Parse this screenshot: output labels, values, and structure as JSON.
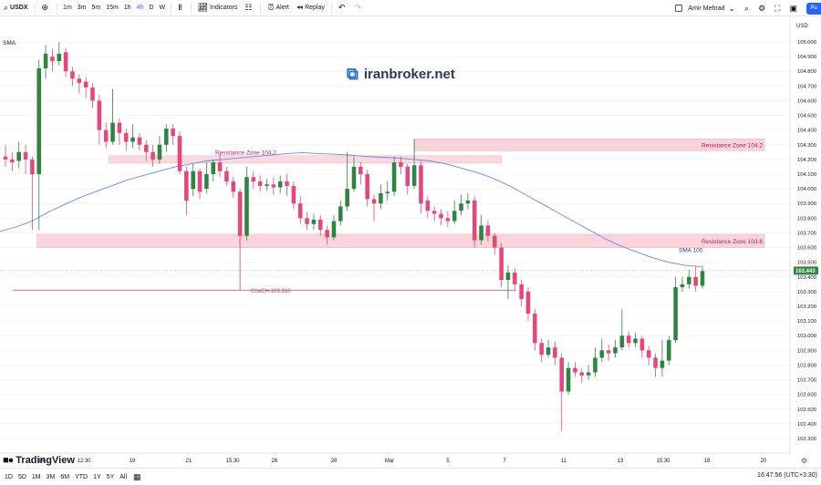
{
  "toolbar": {
    "symbol": "USDX",
    "timeframes": [
      "1m",
      "3m",
      "5m",
      "15m",
      "1h",
      "4h",
      "D",
      "W"
    ],
    "active_timeframe": "4h",
    "indicators_label": "Indicators",
    "alert_label": "Alert",
    "replay_label": "Replay",
    "user_name": "Amir Mehrad",
    "publish_label": "Pu"
  },
  "legend": {
    "indicator_label": "SMA"
  },
  "watermark": {
    "text": "iranbroker.net"
  },
  "branding": {
    "text": "TradingView"
  },
  "bottom": {
    "ranges": [
      "1D",
      "5D",
      "1M",
      "3M",
      "6M",
      "YTD",
      "1Y",
      "5Y",
      "All"
    ],
    "clock": "16:47:56 (UTC+3:30)"
  },
  "colors": {
    "up": "#2e8540",
    "down": "#e8457a",
    "zone": "#f8cdd4",
    "zone_border": "#f3a7b4",
    "zone_label": "#c2185b",
    "sma": "#5b8def",
    "choch": "#b5485f",
    "price_tag": "#2e8540"
  },
  "chart_data": {
    "type": "candlestick",
    "currency": "USD",
    "y_ticks": [
      "105.000",
      "104.900",
      "104.800",
      "104.700",
      "104.600",
      "104.500",
      "104.400",
      "104.300",
      "104.200",
      "104.100",
      "104.000",
      "103.900",
      "103.800",
      "103.700",
      "103.600",
      "103.500",
      "103.400",
      "103.300",
      "103.200",
      "103.100",
      "103.000",
      "102.900",
      "102.800",
      "102.700",
      "102.600",
      "102.500",
      "102.400",
      "102.300"
    ],
    "ylim": [
      102.28,
      105.05
    ],
    "x_ticks": [
      "14",
      "12:30",
      "19",
      "21",
      "15:30",
      "26",
      "28",
      "Mar",
      "5",
      "7",
      "11",
      "13",
      "15:30",
      "18",
      "20"
    ],
    "last_price": "103.443",
    "sma_label": "SMA 100",
    "sma_values": [
      103.71,
      103.74,
      103.78,
      103.84,
      103.89,
      103.94,
      103.98,
      104.02,
      104.06,
      104.09,
      104.12,
      104.15,
      104.17,
      104.19,
      104.2,
      104.21,
      104.22,
      104.23,
      104.24,
      104.245,
      104.24,
      104.235,
      104.23,
      104.22,
      104.215,
      104.21,
      104.2,
      104.19,
      104.17,
      104.14,
      104.11,
      104.07,
      104.02,
      103.96,
      103.9,
      103.84,
      103.78,
      103.72,
      103.66,
      103.61,
      103.57,
      103.53,
      103.5,
      103.48,
      103.47
    ],
    "zones": [
      {
        "label": "Resistance Zone 104.2",
        "top": 104.225,
        "bottom": 104.175
      },
      {
        "label": "Resistance Zone 104.2",
        "top": 104.34,
        "bottom": 104.26
      },
      {
        "label": "Resistance Zone 103.6",
        "top": 103.69,
        "bottom": 103.6
      }
    ],
    "choch": {
      "label": "ChoCH-103.310",
      "value": 103.31
    },
    "candles": [
      [
        104.22,
        104.2,
        104.3,
        104.15
      ],
      [
        104.2,
        104.18,
        104.25,
        104.12
      ],
      [
        104.19,
        104.25,
        104.32,
        104.14
      ],
      [
        104.25,
        104.2,
        104.3,
        104.1
      ],
      [
        104.2,
        104.1,
        104.22,
        103.72
      ],
      [
        104.1,
        104.82,
        104.88,
        103.72
      ],
      [
        104.82,
        104.92,
        104.98,
        104.75
      ],
      [
        104.9,
        104.87,
        104.95,
        104.8
      ],
      [
        104.87,
        104.92,
        105.0,
        104.84
      ],
      [
        104.93,
        104.8,
        104.96,
        104.76
      ],
      [
        104.8,
        104.75,
        104.83,
        104.7
      ],
      [
        104.75,
        104.72,
        104.78,
        104.65
      ],
      [
        104.73,
        104.69,
        104.76,
        104.62
      ],
      [
        104.69,
        104.6,
        104.72,
        104.55
      ],
      [
        104.6,
        104.4,
        104.64,
        104.3
      ],
      [
        104.4,
        104.32,
        104.45,
        104.28
      ],
      [
        104.32,
        104.45,
        104.68,
        104.3
      ],
      [
        104.45,
        104.38,
        104.48,
        104.3
      ],
      [
        104.38,
        104.32,
        104.41,
        104.26
      ],
      [
        104.32,
        104.35,
        104.44,
        104.28
      ],
      [
        104.35,
        104.3,
        104.38,
        104.26
      ],
      [
        104.3,
        104.25,
        104.33,
        104.19
      ],
      [
        104.25,
        104.2,
        104.3,
        104.15
      ],
      [
        104.2,
        104.3,
        104.36,
        104.17
      ],
      [
        104.3,
        104.41,
        104.44,
        104.25
      ],
      [
        104.41,
        104.36,
        104.44,
        104.3
      ],
      [
        104.36,
        104.12,
        104.39,
        104.1
      ],
      [
        104.12,
        103.92,
        104.15,
        103.82
      ],
      [
        104.0,
        104.12,
        104.17,
        103.95
      ],
      [
        104.12,
        103.98,
        104.14,
        103.93
      ],
      [
        104.0,
        104.1,
        104.18,
        103.97
      ],
      [
        104.1,
        104.18,
        104.2,
        104.05
      ],
      [
        104.18,
        104.12,
        104.24,
        104.08
      ],
      [
        104.12,
        104.05,
        104.15,
        104.02
      ],
      [
        104.05,
        103.98,
        104.08,
        103.94
      ],
      [
        103.98,
        103.68,
        104.0,
        103.62
      ],
      [
        103.68,
        104.08,
        104.15,
        103.65
      ],
      [
        104.08,
        104.05,
        104.12,
        104.0
      ],
      [
        104.05,
        104.02,
        104.09,
        103.98
      ],
      [
        104.02,
        104.03,
        104.07,
        103.99
      ],
      [
        104.03,
        104.01,
        104.08,
        103.96
      ],
      [
        104.01,
        104.05,
        104.09,
        103.97
      ],
      [
        104.05,
        104.02,
        104.1,
        103.95
      ],
      [
        104.02,
        103.9,
        104.05,
        103.86
      ],
      [
        103.9,
        103.8,
        103.95,
        103.76
      ],
      [
        103.8,
        103.76,
        103.84,
        103.72
      ],
      [
        103.76,
        103.79,
        103.83,
        103.72
      ],
      [
        103.79,
        103.72,
        103.82,
        103.68
      ],
      [
        103.72,
        103.67,
        103.75,
        103.62
      ],
      [
        103.67,
        103.78,
        103.82,
        103.65
      ],
      [
        103.78,
        103.88,
        103.92,
        103.75
      ],
      [
        103.88,
        104.0,
        104.25,
        103.85
      ],
      [
        104.0,
        104.15,
        104.22,
        103.98
      ],
      [
        104.15,
        104.1,
        104.18,
        104.03
      ],
      [
        104.1,
        103.93,
        104.13,
        103.88
      ],
      [
        103.93,
        103.9,
        103.96,
        103.78
      ],
      [
        103.9,
        103.97,
        104.03,
        103.86
      ],
      [
        103.97,
        103.98,
        104.05,
        103.92
      ],
      [
        103.98,
        104.18,
        104.22,
        103.95
      ],
      [
        104.18,
        104.15,
        104.22,
        104.1
      ],
      [
        104.15,
        104.02,
        104.17,
        103.96
      ],
      [
        104.02,
        104.16,
        104.34,
        104.0
      ],
      [
        104.16,
        103.9,
        104.19,
        103.83
      ],
      [
        103.92,
        103.85,
        103.95,
        103.8
      ],
      [
        103.85,
        103.83,
        103.88,
        103.78
      ],
      [
        103.83,
        103.8,
        103.86,
        103.75
      ],
      [
        103.8,
        103.78,
        103.85,
        103.74
      ],
      [
        103.78,
        103.85,
        103.92,
        103.76
      ],
      [
        103.85,
        103.9,
        103.96,
        103.82
      ],
      [
        103.9,
        103.92,
        103.97,
        103.86
      ],
      [
        103.92,
        103.65,
        103.95,
        103.6
      ],
      [
        103.65,
        103.75,
        103.82,
        103.62
      ],
      [
        103.75,
        103.68,
        103.78,
        103.64
      ],
      [
        103.68,
        103.6,
        103.7,
        103.55
      ],
      [
        103.6,
        103.38,
        103.63,
        103.33
      ],
      [
        103.38,
        103.43,
        103.48,
        103.25
      ],
      [
        103.43,
        103.35,
        103.46,
        103.3
      ],
      [
        103.35,
        103.25,
        103.38,
        103.2
      ],
      [
        103.3,
        103.15,
        103.33,
        103.1
      ],
      [
        103.15,
        102.95,
        103.18,
        102.9
      ],
      [
        102.95,
        102.87,
        102.98,
        102.82
      ],
      [
        102.87,
        102.92,
        102.97,
        102.85
      ],
      [
        102.92,
        102.85,
        102.96,
        102.8
      ],
      [
        102.85,
        102.62,
        102.88,
        102.35
      ],
      [
        102.62,
        102.78,
        102.82,
        102.6
      ],
      [
        102.78,
        102.75,
        102.82,
        102.72
      ],
      [
        102.75,
        102.73,
        102.78,
        102.68
      ],
      [
        102.73,
        102.75,
        102.8,
        102.7
      ],
      [
        102.75,
        102.85,
        102.92,
        102.72
      ],
      [
        102.85,
        102.9,
        102.98,
        102.82
      ],
      [
        102.9,
        102.88,
        102.94,
        102.83
      ],
      [
        102.88,
        102.92,
        102.97,
        102.85
      ],
      [
        102.92,
        103.0,
        103.18,
        102.9
      ],
      [
        103.0,
        102.95,
        103.03,
        102.92
      ],
      [
        102.95,
        102.98,
        103.02,
        102.92
      ],
      [
        102.98,
        102.9,
        103.0,
        102.85
      ],
      [
        102.9,
        102.85,
        102.93,
        102.8
      ],
      [
        102.85,
        102.78,
        102.88,
        102.72
      ],
      [
        102.78,
        102.83,
        102.97,
        102.72
      ],
      [
        102.83,
        102.97,
        103.0,
        102.8
      ],
      [
        102.97,
        103.33,
        103.4,
        102.95
      ],
      [
        103.33,
        103.35,
        103.4,
        103.3
      ],
      [
        103.35,
        103.4,
        103.45,
        103.32
      ],
      [
        103.4,
        103.34,
        103.47,
        103.3
      ],
      [
        103.34,
        103.44,
        103.48,
        103.32
      ]
    ]
  }
}
